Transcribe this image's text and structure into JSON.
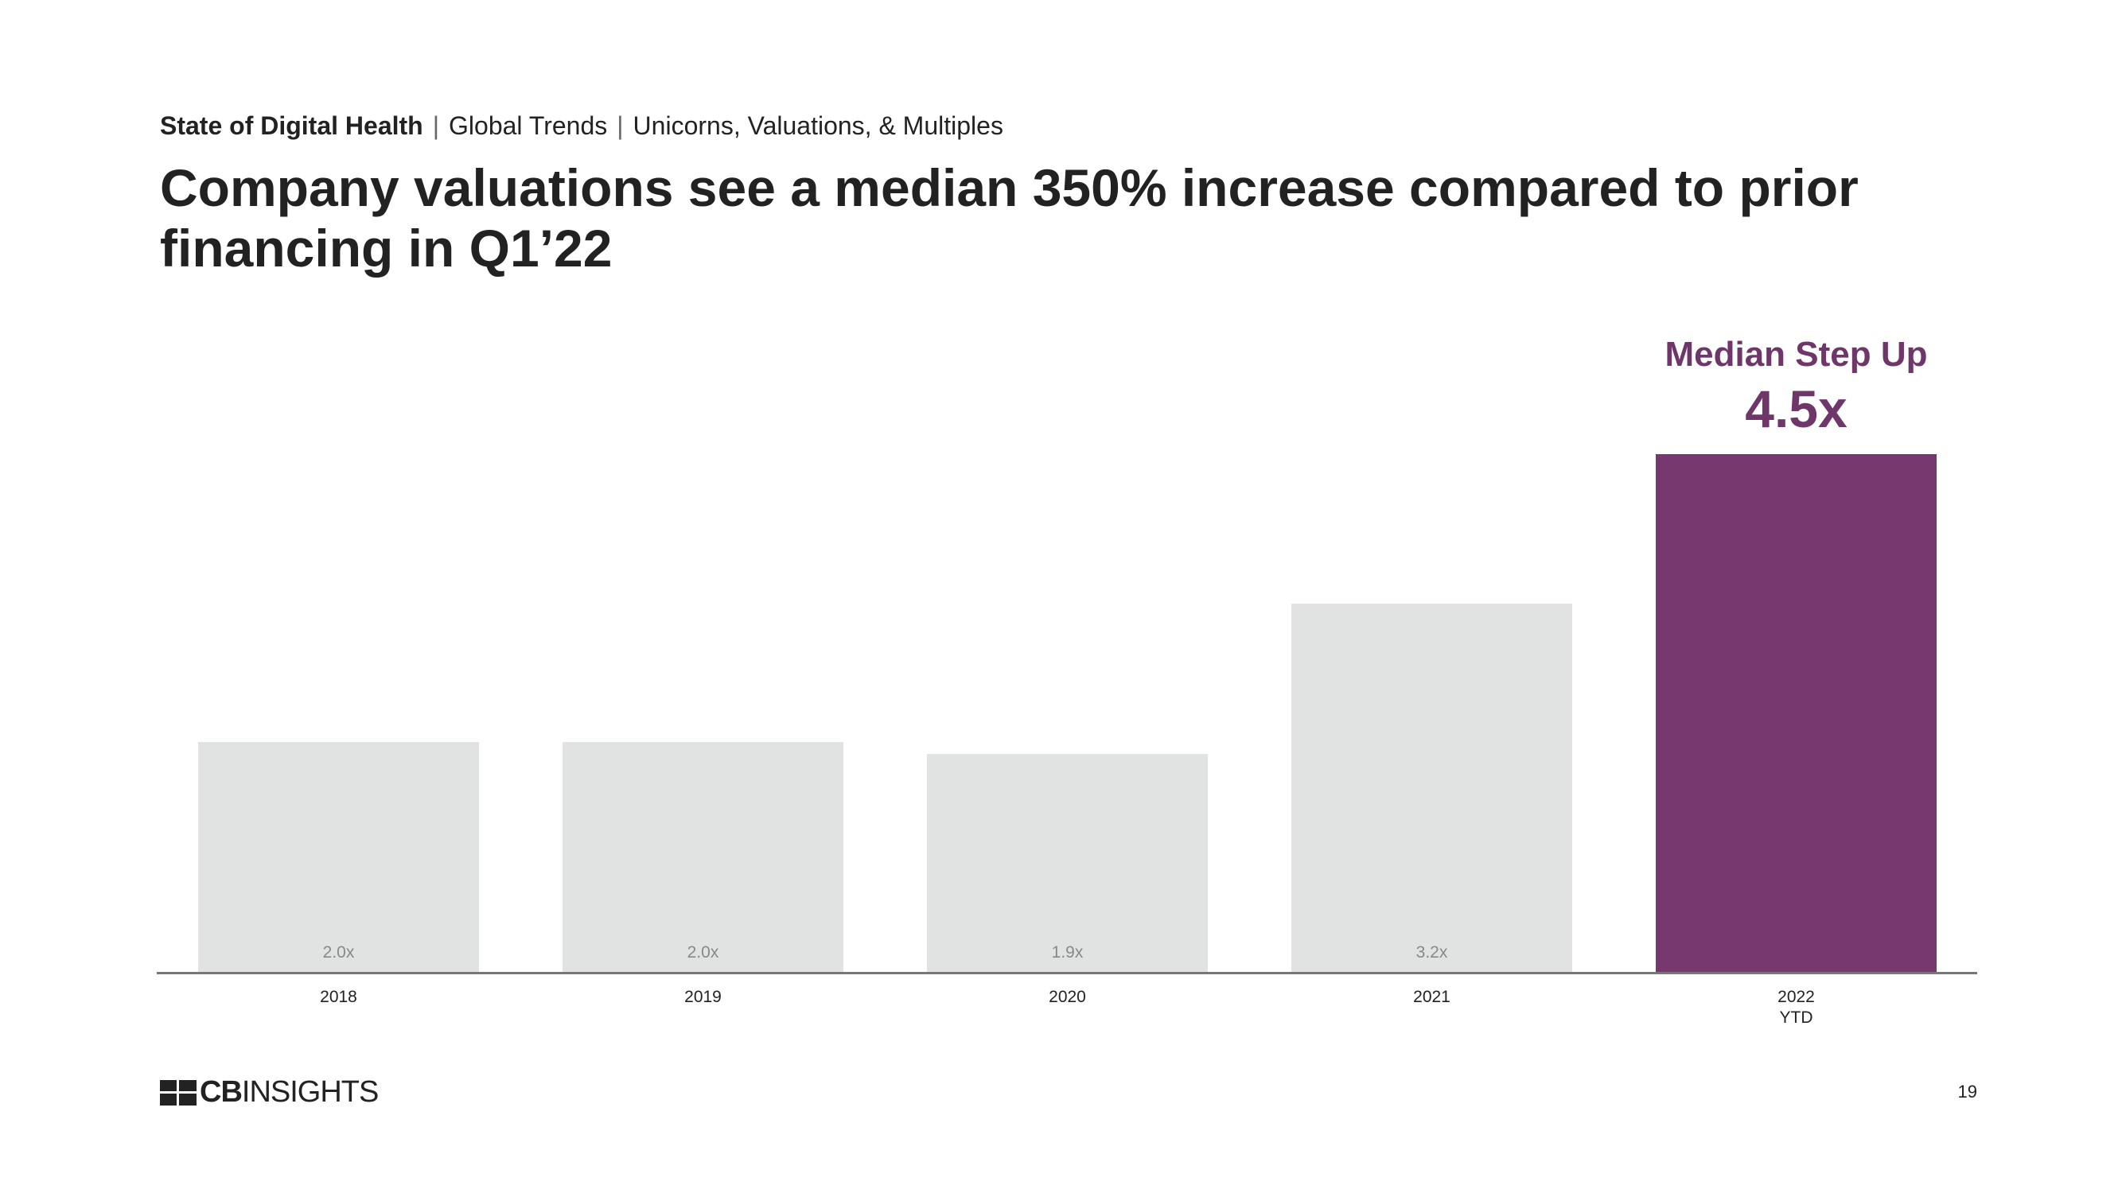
{
  "header": {
    "section": "State of Digital Health",
    "topic": "Global Trends",
    "subtopic": "Unicorns, Valuations, & Multiples"
  },
  "title": "Company valuations see a median 350% increase compared to prior financing in Q1’22",
  "chart_data": {
    "type": "bar",
    "categories": [
      "2018",
      "2019",
      "2020",
      "2021",
      "2022\nYTD"
    ],
    "values": [
      2.0,
      2.0,
      1.9,
      3.2,
      4.5
    ],
    "value_labels": [
      "2.0x",
      "2.0x",
      "1.9x",
      "3.2x",
      "4.5x"
    ],
    "colors": [
      "#e1e3e2",
      "#e1e3e2",
      "#e1e3e2",
      "#e1e3e2",
      "#77386f"
    ],
    "annotation": "Median Step Up"
  },
  "footer": {
    "logo_bold": "CB",
    "logo_light": "INSIGHTS",
    "page_number": "19"
  }
}
